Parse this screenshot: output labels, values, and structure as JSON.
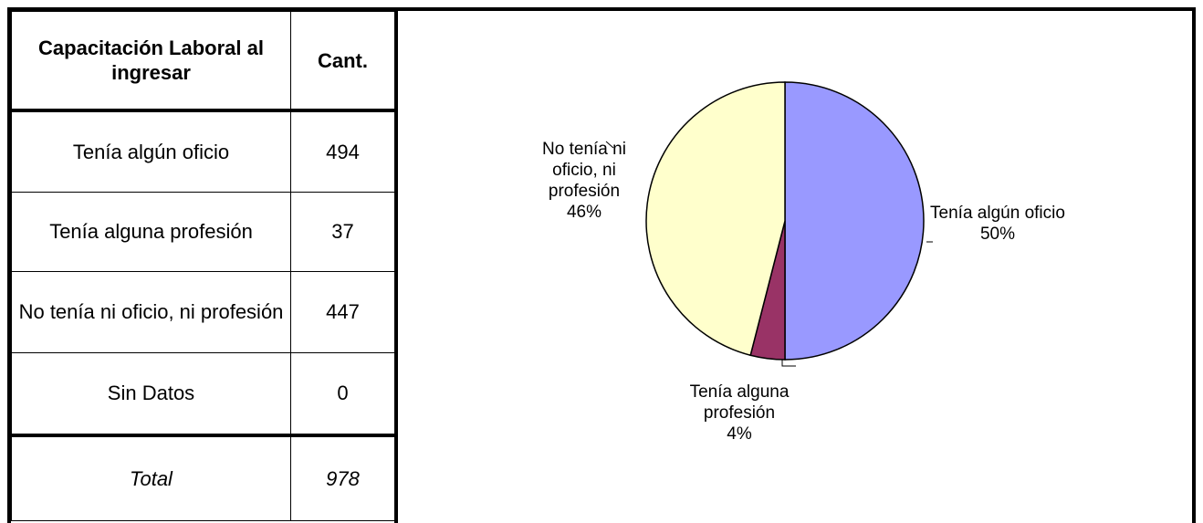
{
  "table": {
    "header": [
      "Capacitación Laboral al ingresar",
      "Cant."
    ],
    "rows": [
      [
        "Tenía algún oficio",
        494
      ],
      [
        "Tenía alguna profesión",
        37
      ],
      [
        "No tenía ni oficio, ni profesión",
        447
      ],
      [
        "Sin Datos",
        0
      ]
    ],
    "total": [
      "Total",
      978
    ]
  },
  "chart_data": {
    "type": "pie",
    "categories": [
      "Tenía algún oficio",
      "Tenía alguna profesión",
      "No tenía ni oficio, ni profesión"
    ],
    "values": [
      50,
      4,
      46
    ],
    "value_labels": [
      "50%",
      "4%",
      "46%"
    ],
    "colors": [
      "#9999ff",
      "#993366",
      "#ffffcc"
    ]
  }
}
